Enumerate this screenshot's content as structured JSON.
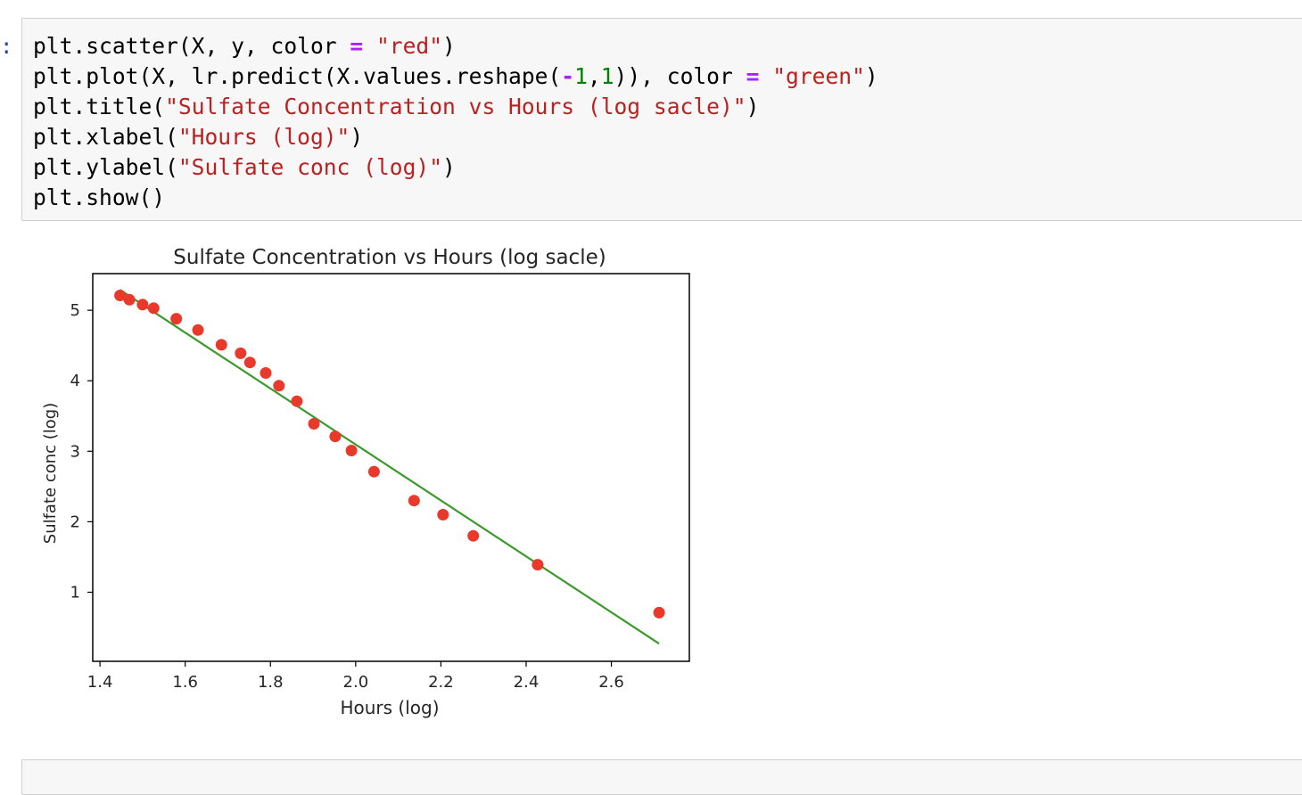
{
  "cell": {
    "prompt": ":",
    "code_lines": [
      [
        {
          "t": "plt.scatter(X, y, color "
        },
        {
          "t": "=",
          "c": "o"
        },
        {
          "t": " "
        },
        {
          "t": "\"red\"",
          "c": "s"
        },
        {
          "t": ")"
        }
      ],
      [
        {
          "t": "plt.plot(X, lr.predict(X.values.reshape("
        },
        {
          "t": "-",
          "c": "o"
        },
        {
          "t": "1",
          "c": "n"
        },
        {
          "t": ","
        },
        {
          "t": "1",
          "c": "n"
        },
        {
          "t": ")), color "
        },
        {
          "t": "=",
          "c": "o"
        },
        {
          "t": " "
        },
        {
          "t": "\"green\"",
          "c": "s"
        },
        {
          "t": ")"
        }
      ],
      [
        {
          "t": "plt.title("
        },
        {
          "t": "\"Sulfate Concentration vs Hours (log sacle)\"",
          "c": "s"
        },
        {
          "t": ")"
        }
      ],
      [
        {
          "t": "plt.xlabel("
        },
        {
          "t": "\"Hours (log)\"",
          "c": "s"
        },
        {
          "t": ")"
        }
      ],
      [
        {
          "t": "plt.ylabel("
        },
        {
          "t": "\"Sulfate conc (log)\"",
          "c": "s"
        },
        {
          "t": ")"
        }
      ],
      [
        {
          "t": "plt.show()"
        }
      ]
    ]
  },
  "colors": {
    "points": "#e8392b",
    "line": "#3a9a2a",
    "string": "#ba2121",
    "operator": "#aa22ff",
    "number": "#008000"
  },
  "chart_data": {
    "type": "scatter",
    "title": "Sulfate Concentration vs Hours (log sacle)",
    "xlabel": "Hours (log)",
    "ylabel": "Sulfate conc (log)",
    "xlim": [
      1.383,
      2.783
    ],
    "ylim": [
      0.02,
      5.52
    ],
    "xticks": [
      1.4,
      1.6,
      1.8,
      2.0,
      2.2,
      2.4,
      2.6
    ],
    "xtick_labels": [
      "1.4",
      "1.6",
      "1.8",
      "2.0",
      "2.2",
      "2.4",
      "2.6"
    ],
    "yticks": [
      1,
      2,
      3,
      4,
      5
    ],
    "ytick_labels": [
      "1",
      "2",
      "3",
      "4",
      "5"
    ],
    "grid": false,
    "series": [
      {
        "kind": "scatter",
        "color": "red",
        "x": [
          1.447,
          1.469,
          1.5,
          1.526,
          1.579,
          1.63,
          1.685,
          1.73,
          1.752,
          1.789,
          1.82,
          1.862,
          1.902,
          1.952,
          1.99,
          2.043,
          2.137,
          2.205,
          2.276,
          2.427,
          2.712
        ],
        "y": [
          5.21,
          5.15,
          5.08,
          5.03,
          4.88,
          4.72,
          4.51,
          4.39,
          4.26,
          4.11,
          3.93,
          3.71,
          3.39,
          3.21,
          3.01,
          2.71,
          2.3,
          2.1,
          1.8,
          1.39,
          0.71
        ]
      },
      {
        "kind": "line",
        "color": "green",
        "x": [
          1.447,
          2.712
        ],
        "y": [
          5.29,
          0.27
        ]
      }
    ]
  }
}
